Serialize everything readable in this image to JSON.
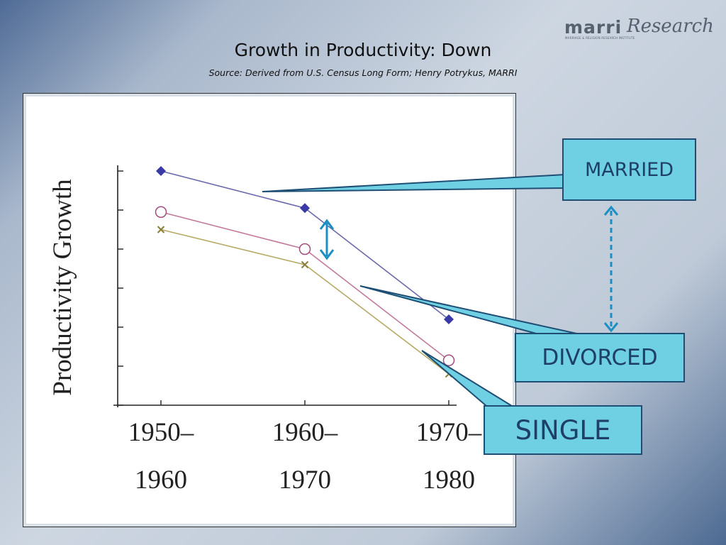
{
  "header": {
    "title": "Growth in Productivity: Down",
    "subtitle": "Source: Derived from U.S. Census Long Form; Henry Potrykus, MARRI"
  },
  "logo": {
    "word1": "marri",
    "word2": "Research",
    "tagline": "MARRIAGE & RELIGION RESEARCH INSTITUTE"
  },
  "callouts": {
    "married": "MARRIED",
    "divorced": "DIVORCED",
    "single": "SINGLE"
  },
  "colors": {
    "married": "#6a6aaa",
    "divorced": "#c27a9c",
    "single": "#b5a965",
    "married_marker": "#3a3aa6",
    "divorced_marker": "#a04d7e",
    "single_marker": "#8c7f3a",
    "callout_fill": "#6fd0e3",
    "callout_border": "#1f4e74",
    "arrow": "#1b8fc4"
  },
  "chart_data": {
    "type": "line",
    "ylabel": "Productivity Growth",
    "xlabel": "",
    "categories": [
      [
        "1950–",
        "1960"
      ],
      [
        "1960–",
        "1970"
      ],
      [
        "1970–",
        "1980"
      ]
    ],
    "ylim": [
      0,
      6
    ],
    "y_tick_count": 7,
    "series": [
      {
        "name": "MARRIED",
        "marker": "diamond",
        "values": [
          6.0,
          5.05,
          2.2
        ]
      },
      {
        "name": "DIVORCED",
        "marker": "circle",
        "values": [
          4.95,
          4.0,
          1.15
        ]
      },
      {
        "name": "SINGLE",
        "marker": "x",
        "values": [
          4.5,
          3.6,
          0.8
        ]
      }
    ]
  }
}
